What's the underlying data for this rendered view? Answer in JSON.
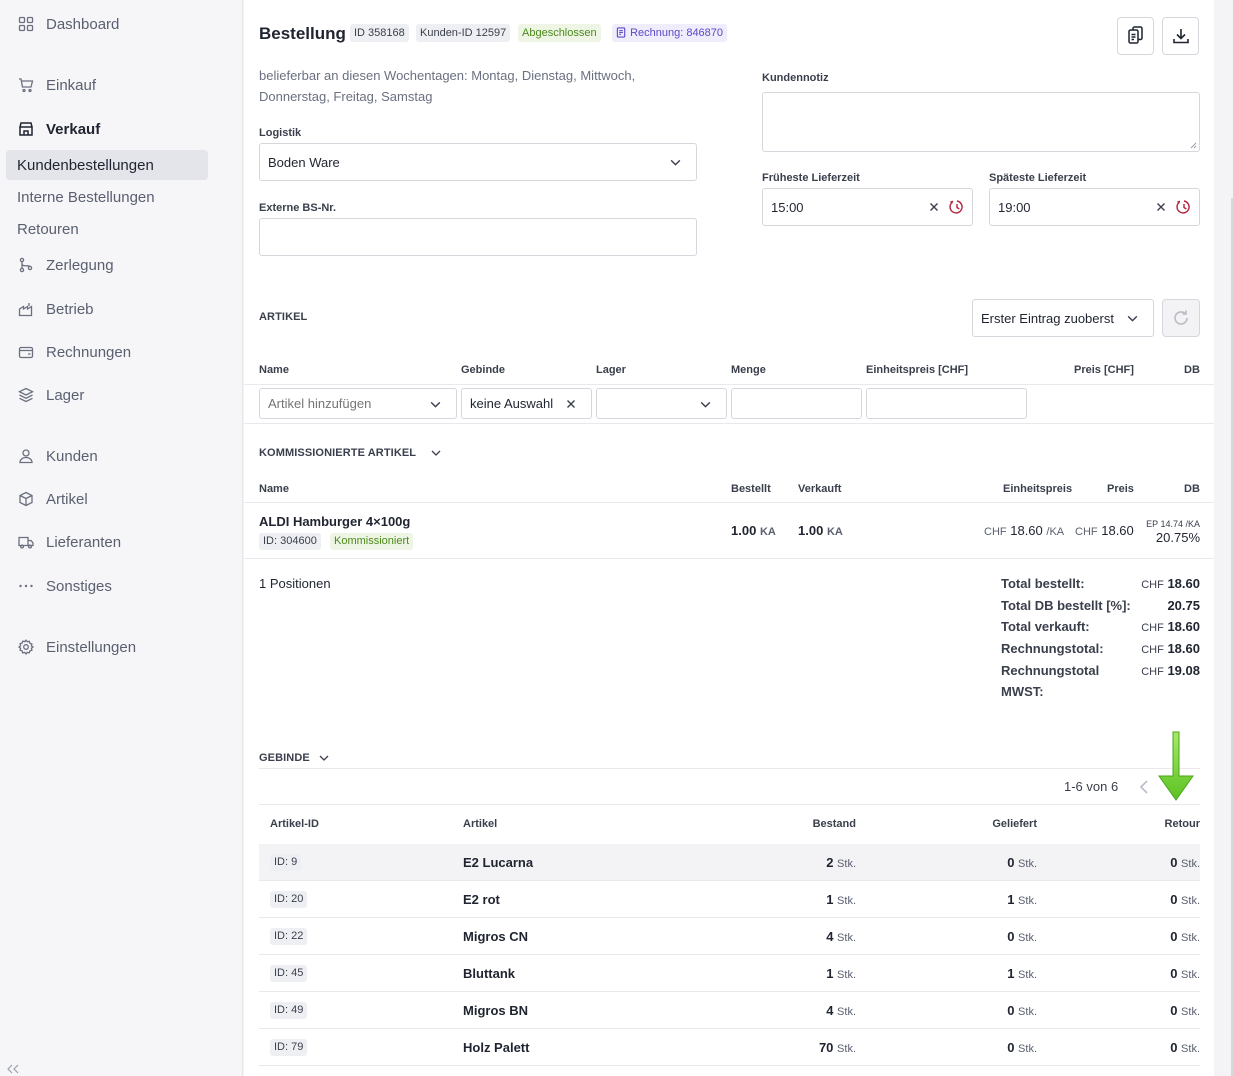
{
  "sidebar": {
    "dashboard": "Dashboard",
    "einkauf": "Einkauf",
    "verkauf": "Verkauf",
    "kundenbestellungen": "Kundenbestellungen",
    "interne": "Interne Bestellungen",
    "retouren": "Retouren",
    "zerlegung": "Zerlegung",
    "betrieb": "Betrieb",
    "rechnungen": "Rechnungen",
    "lager": "Lager",
    "kunden": "Kunden",
    "artikel": "Artikel",
    "lieferanten": "Lieferanten",
    "sonstiges": "Sonstiges",
    "einstellungen": "Einstellungen"
  },
  "header": {
    "title": "Bestellung",
    "id_badge": "ID 358168",
    "kunden_badge": "Kunden-ID 12597",
    "status_badge": "Abgeschlossen",
    "rechnung_badge": "Rechnung: 846870"
  },
  "form": {
    "delivery_days": "belieferbar an diesen Wochentagen: Montag, Dienstag, Mittwoch, Donnerstag, Freitag, Samstag",
    "logistik_label": "Logistik",
    "logistik_value": "Boden Ware",
    "externe_label": "Externe BS-Nr.",
    "externe_value": "",
    "kundennotiz_label": "Kundennotiz",
    "kundennotiz_value": "",
    "frueheste_label": "Früheste Lieferzeit",
    "frueheste_value": "15:00",
    "spaeteste_label": "Späteste Lieferzeit",
    "spaeteste_value": "19:00"
  },
  "artikel": {
    "section_title": "ARTIKEL",
    "sort_value": "Erster Eintrag zuoberst",
    "headers": {
      "name": "Name",
      "gebinde": "Gebinde",
      "lager": "Lager",
      "menge": "Menge",
      "einheitspreis": "Einheitspreis [CHF]",
      "preis": "Preis [CHF]",
      "db": "DB"
    },
    "add_placeholder": "Artikel hinzufügen",
    "gebinde_value": "keine Auswahl"
  },
  "kommissioniert": {
    "section_title": "KOMMISSIONIERTE ARTIKEL",
    "headers": {
      "name": "Name",
      "bestellt": "Bestellt",
      "verkauft": "Verkauft",
      "einheitspreis": "Einheitspreis",
      "preis": "Preis",
      "db": "DB"
    },
    "item": {
      "name": "ALDI Hamburger 4×100g",
      "id": "ID: 304600",
      "status": "Kommissioniert",
      "bestellt": "1.00",
      "bestellt_unit": "KA",
      "verkauft": "1.00",
      "verkauft_unit": "KA",
      "ep_cur": "CHF",
      "ep_value": "18.60",
      "ep_unit": "/KA",
      "preis_cur": "CHF",
      "preis_value": "18.60",
      "db_ep": "EP 14.74 /KA",
      "db_pct": "20.75%"
    },
    "positions": "1 Positionen"
  },
  "totals": {
    "bestellt_label": "Total bestellt:",
    "bestellt_cur": "CHF",
    "bestellt_value": "18.60",
    "db_label": "Total DB bestellt [%]:",
    "db_value": "20.75",
    "verkauft_label": "Total verkauft:",
    "verkauft_cur": "CHF",
    "verkauft_value": "18.60",
    "rechnung_label": "Rechnungstotal:",
    "rechnung_cur": "CHF",
    "rechnung_value": "18.60",
    "mwst_label_1": "Rechnungstotal",
    "mwst_label_2": "MWST:",
    "mwst_cur": "CHF",
    "mwst_value": "19.08"
  },
  "gebinde": {
    "section_title": "GEBINDE",
    "pagination": "1-6 von 6",
    "headers": {
      "artikel_id": "Artikel-ID",
      "artikel": "Artikel",
      "bestand": "Bestand",
      "geliefert": "Geliefert",
      "retour": "Retour"
    },
    "unit": "Stk.",
    "rows": [
      {
        "id": "ID: 9",
        "name": "E2 Lucarna",
        "bestand": "2",
        "geliefert": "0",
        "retour": "0"
      },
      {
        "id": "ID: 20",
        "name": "E2 rot",
        "bestand": "1",
        "geliefert": "1",
        "retour": "0"
      },
      {
        "id": "ID: 22",
        "name": "Migros CN",
        "bestand": "4",
        "geliefert": "0",
        "retour": "0"
      },
      {
        "id": "ID: 45",
        "name": "Bluttank",
        "bestand": "1",
        "geliefert": "1",
        "retour": "0"
      },
      {
        "id": "ID: 49",
        "name": "Migros BN",
        "bestand": "4",
        "geliefert": "0",
        "retour": "0"
      },
      {
        "id": "ID: 79",
        "name": "Holz Palett",
        "bestand": "70",
        "geliefert": "0",
        "retour": "0"
      }
    ]
  },
  "colors": {
    "accent_green": "#6fcf2f",
    "status_green": "#4b8a1c",
    "invoice_purple": "#5b48c7",
    "clock_red": "#b4233a"
  }
}
